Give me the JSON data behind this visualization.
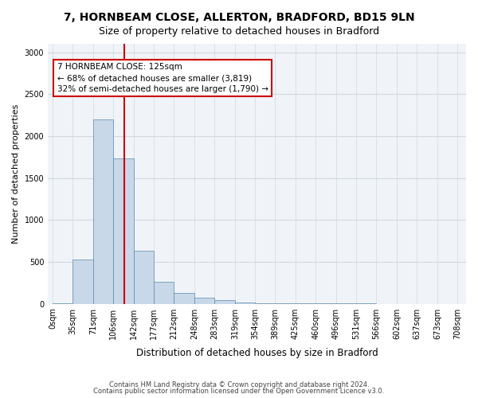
{
  "title_line1": "7, HORNBEAM CLOSE, ALLERTON, BRADFORD, BD15 9LN",
  "title_line2": "Size of property relative to detached houses in Bradford",
  "xlabel": "Distribution of detached houses by size in Bradford",
  "ylabel": "Number of detached properties",
  "bar_color": "#c8d8e8",
  "bar_edge_color": "#5a8ab0",
  "bin_edges": [
    0,
    35,
    71,
    106,
    142,
    177,
    212,
    248,
    283,
    319,
    354,
    389,
    425,
    460,
    496,
    531,
    566,
    602,
    637,
    673,
    708
  ],
  "bar_heights": [
    5,
    525,
    2200,
    1730,
    635,
    260,
    130,
    75,
    40,
    15,
    5,
    10,
    5,
    3,
    2,
    2,
    1,
    1,
    1,
    1
  ],
  "ylim": [
    0,
    3100
  ],
  "yticks": [
    0,
    500,
    1000,
    1500,
    2000,
    2500,
    3000
  ],
  "property_size": 125,
  "red_line_color": "#cc0000",
  "annotation_text": "7 HORNBEAM CLOSE: 125sqm\n← 68% of detached houses are smaller (3,819)\n32% of semi-detached houses are larger (1,790) →",
  "annotation_box_color": "#cc0000",
  "grid_color": "#d0d8e0",
  "bg_color": "#f0f4f8",
  "footer_line1": "Contains HM Land Registry data © Crown copyright and database right 2024.",
  "footer_line2": "Contains public sector information licensed under the Open Government Licence v3.0.",
  "tick_labels": [
    "0sqm",
    "35sqm",
    "71sqm",
    "106sqm",
    "142sqm",
    "177sqm",
    "212sqm",
    "248sqm",
    "283sqm",
    "319sqm",
    "354sqm",
    "389sqm",
    "425sqm",
    "460sqm",
    "496sqm",
    "531sqm",
    "566sqm",
    "602sqm",
    "637sqm",
    "673sqm",
    "708sqm"
  ]
}
